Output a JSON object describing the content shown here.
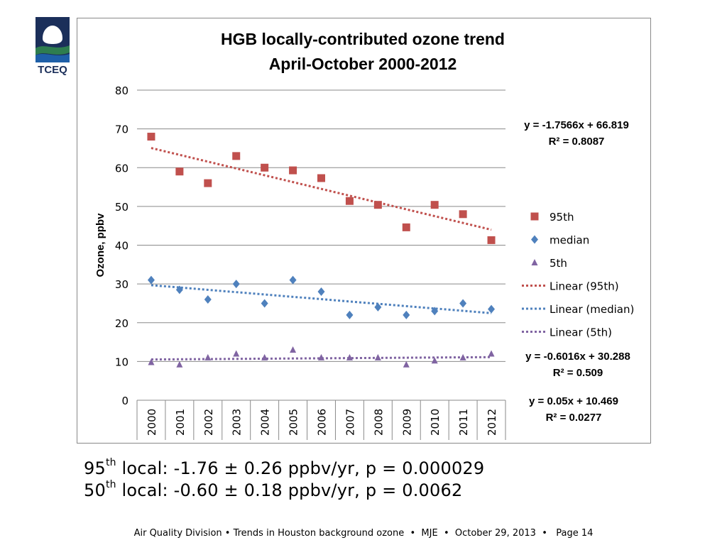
{
  "logo": {
    "text": "TCEQ",
    "color_dark": "#1b2f5a",
    "color_green": "#2e7d4f",
    "color_blue": "#1e5fa8"
  },
  "notes": [
    {
      "prefix": "95",
      "sup": "th",
      "text": " local: -1.76 ± 0.26 ppbv/yr, p = 0.000029"
    },
    {
      "prefix": "50",
      "sup": "th",
      "text": " local: -0.60 ± 0.18 ppbv/yr, p = 0.0062"
    }
  ],
  "footer": "Air Quality Division • Trends in Houston background ozone  •  MJE  •  October 29, 2013  •   Page 14",
  "chart_data": {
    "type": "scatter",
    "title": [
      "HGB locally-contributed ozone trend",
      "April-October  2000-2012"
    ],
    "xlabel": "",
    "ylabel": "Ozone, ppbv",
    "categories": [
      "2000",
      "2001",
      "2002",
      "2003",
      "2004",
      "2005",
      "2006",
      "2007",
      "2008",
      "2009",
      "2010",
      "2011",
      "2012"
    ],
    "ylim": [
      0,
      80
    ],
    "yticks": [
      0,
      10,
      20,
      30,
      40,
      50,
      60,
      70,
      80
    ],
    "grid": true,
    "legend_position": "right",
    "series": [
      {
        "name": "95th",
        "marker": "square",
        "color": "#c0504d",
        "values": [
          68,
          59,
          56,
          63,
          60,
          59.3,
          57.3,
          51.4,
          50.4,
          44.6,
          50.4,
          48,
          41.3
        ]
      },
      {
        "name": "median",
        "marker": "diamond",
        "color": "#4f81bd",
        "values": [
          31,
          28.5,
          26,
          30,
          25,
          31,
          28,
          22,
          24,
          22,
          23,
          25,
          23.5
        ]
      },
      {
        "name": "5th",
        "marker": "triangle",
        "color": "#8064a2",
        "values": [
          9.8,
          9.2,
          11,
          12,
          11,
          13,
          11,
          11,
          11,
          9.2,
          10.2,
          11,
          12
        ]
      }
    ],
    "trendlines": [
      {
        "name": "Linear (95th)",
        "color": "#c0504d",
        "slope": -1.7566,
        "intercept": 66.819,
        "equation": "y = -1.7566x + 66.819",
        "r2": "R² = 0.8087"
      },
      {
        "name": "Linear (median)",
        "color": "#4f81bd",
        "slope": -0.6016,
        "intercept": 30.288,
        "equation": "y = -0.6016x + 30.288",
        "r2": "R² = 0.509"
      },
      {
        "name": "Linear (5th)",
        "color": "#8064a2",
        "slope": 0.05,
        "intercept": 10.469,
        "equation": "y = 0.05x + 10.469",
        "r2": "R² = 0.0277"
      }
    ]
  }
}
